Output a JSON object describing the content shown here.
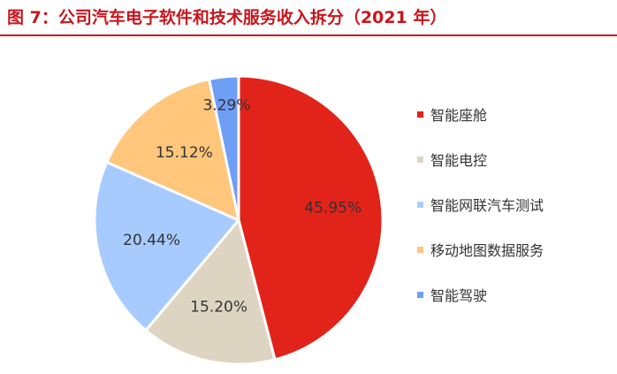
{
  "title": "图 7：公司汽车电子软件和技术服务收入拆分（2021 年）",
  "chart_data": {
    "type": "pie",
    "title": "图 7：公司汽车电子软件和技术服务收入拆分（2021 年）",
    "legend_position": "right",
    "slices": [
      {
        "name": "智能座舱",
        "value": 45.95,
        "label": "45.95%",
        "color": "#e2231a"
      },
      {
        "name": "智能电控",
        "value": 15.2,
        "label": "15.20%",
        "color": "#ddd5c2"
      },
      {
        "name": "智能网联汽车测试",
        "value": 20.44,
        "label": "20.44%",
        "color": "#a8cbff"
      },
      {
        "name": "移动地图数据服务",
        "value": 15.12,
        "label": "15.12%",
        "color": "#ffc67c"
      },
      {
        "name": "智能驾驶",
        "value": 3.29,
        "label": "3.29%",
        "color": "#6f9ef5"
      }
    ]
  }
}
